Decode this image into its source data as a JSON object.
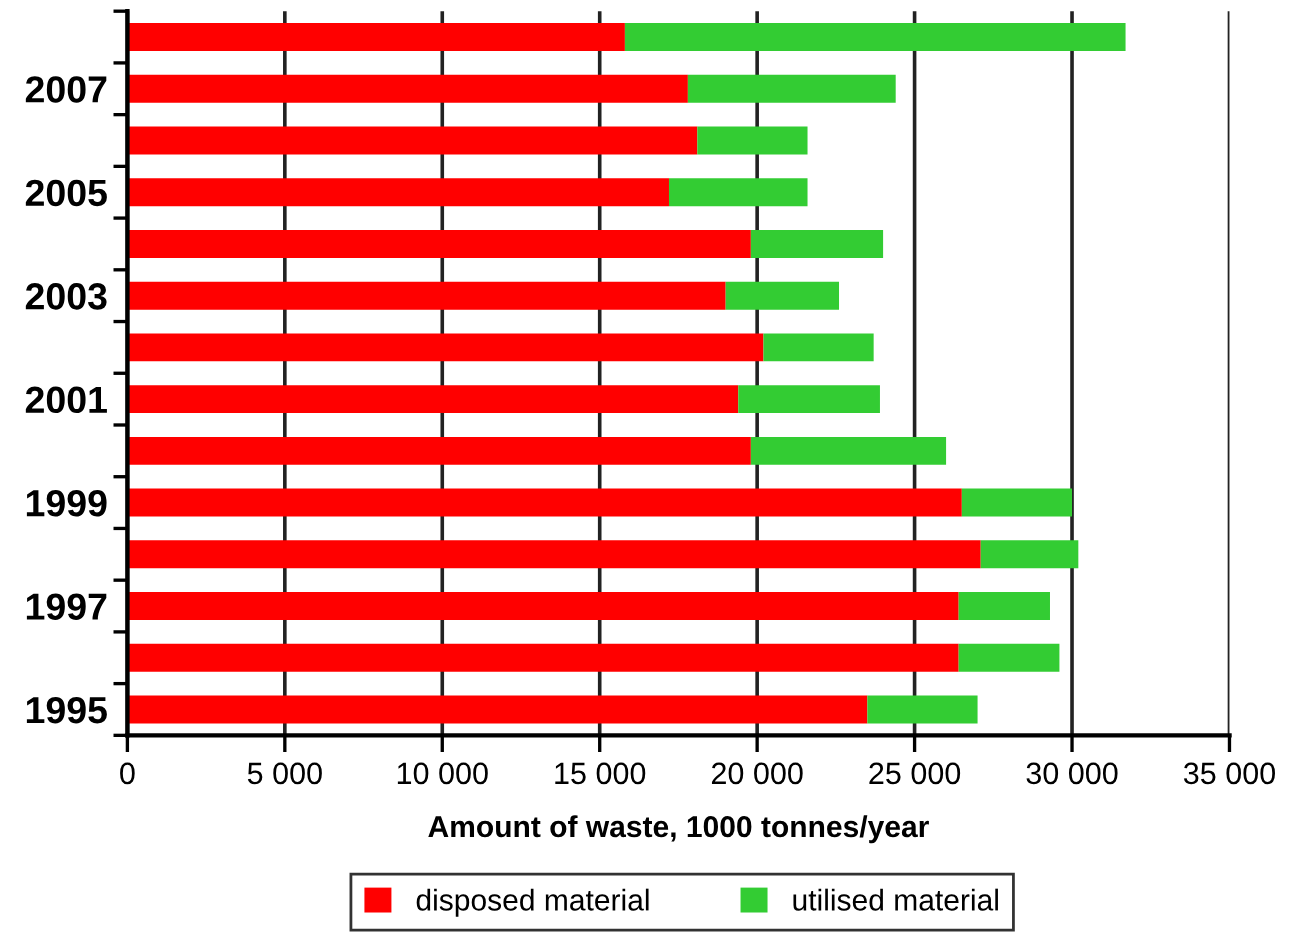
{
  "chart_data": {
    "type": "bar",
    "orientation": "horizontal",
    "stacked": true,
    "categories": [
      null,
      "2007",
      null,
      "2005",
      null,
      "2003",
      null,
      "2001",
      null,
      "1999",
      null,
      "1997",
      null,
      "1995"
    ],
    "series": [
      {
        "name": "disposed material",
        "color": "#ff0000",
        "values": [
          15800,
          17800,
          18100,
          17200,
          19800,
          19000,
          20200,
          19400,
          19800,
          26500,
          27100,
          26400,
          26400,
          23500
        ]
      },
      {
        "name": "utilised material",
        "color": "#33cc33",
        "values": [
          15900,
          6600,
          3500,
          4400,
          4200,
          3600,
          3500,
          4500,
          6200,
          3500,
          3100,
          2900,
          3200,
          3500
        ]
      }
    ],
    "xlabel": "Amount of waste, 1000 tonnes/year",
    "xlim": [
      0,
      35000
    ],
    "xticks": [
      0,
      {
        "value": 5000,
        "label": "5 000"
      },
      {
        "value": 10000,
        "label": "10 000"
      },
      {
        "value": 15000,
        "label": "15 000"
      },
      {
        "value": 20000,
        "label": "20 000"
      },
      {
        "value": 25000,
        "label": "25 000"
      },
      {
        "value": 30000,
        "label": "30 000"
      },
      {
        "value": 35000,
        "label": "35 000"
      }
    ],
    "grid": "x",
    "legend": "bottom"
  }
}
